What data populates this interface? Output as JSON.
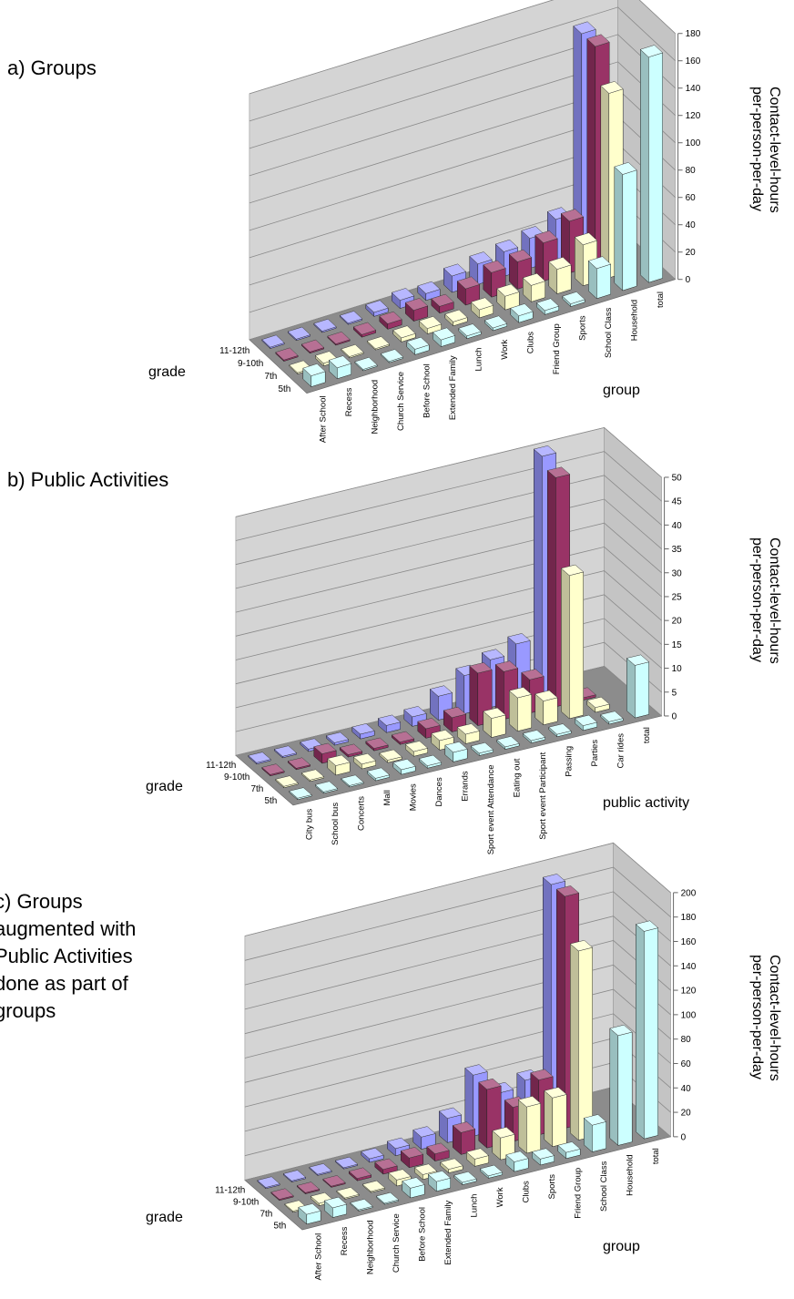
{
  "chart_data": [
    {
      "type": "bar3d",
      "title": "a) Groups",
      "ylabel": "Contact-level-hours per-person-per-day",
      "xlabel": "group",
      "depth_label": "grade",
      "categories": [
        "After School",
        "Recess",
        "Neighborhood",
        "Church Service",
        "Before School",
        "Extended Family",
        "Lunch",
        "Work",
        "Clubs",
        "Friend Group",
        "Sports",
        "School Class",
        "Household",
        "total"
      ],
      "series": [
        {
          "name": "11-12th",
          "color": "#9999ff",
          "values": [
            1,
            1,
            1,
            1,
            3,
            6,
            5,
            12,
            15,
            18,
            22,
            30,
            160,
            null
          ]
        },
        {
          "name": "9-10th",
          "color": "#993366",
          "values": [
            1,
            1,
            1,
            2,
            4,
            8,
            5,
            12,
            18,
            20,
            28,
            38,
            160,
            null
          ]
        },
        {
          "name": "7th",
          "color": "#ffffcc",
          "values": [
            1,
            2,
            1,
            1,
            3,
            4,
            3,
            6,
            10,
            12,
            18,
            30,
            135,
            null
          ]
        },
        {
          "name": "5th",
          "color": "#ccffff",
          "values": [
            8,
            8,
            1,
            1,
            4,
            5,
            2,
            2,
            5,
            3,
            2,
            22,
            85,
            165
          ]
        }
      ],
      "ylim": [
        0,
        180
      ],
      "yticks": [
        0,
        20,
        40,
        60,
        80,
        100,
        120,
        140,
        160,
        180
      ],
      "grid": true
    },
    {
      "type": "bar3d",
      "title": "b) Public Activities",
      "ylabel": "Contact-level-hours per-person-per-day",
      "xlabel": "public activity",
      "depth_label": "grade",
      "categories": [
        "City bus",
        "School bus",
        "Concerts",
        "Mall",
        "Movies",
        "Dances",
        "Errands",
        "Sport event Attendance",
        "Eating out",
        "Sport event Participant",
        "Passing",
        "Parties",
        "Car rides",
        "total"
      ],
      "series": [
        {
          "name": "11-12th",
          "color": "#9999ff",
          "values": [
            0.3,
            0.3,
            0.5,
            0.5,
            1,
            1.5,
            2,
            5,
            8,
            10,
            12,
            50,
            0.5,
            null
          ]
        },
        {
          "name": "9-10th",
          "color": "#993366",
          "values": [
            0.3,
            0.3,
            2,
            0.5,
            0.5,
            0.5,
            2,
            3,
            11,
            10,
            7,
            48,
            0.5,
            null
          ]
        },
        {
          "name": "7th",
          "color": "#ffffcc",
          "values": [
            0.3,
            0.3,
            2,
            1,
            0.5,
            1,
            2,
            2,
            4,
            7,
            5,
            30,
            1,
            null
          ]
        },
        {
          "name": "5th",
          "color": "#ccffff",
          "values": [
            0.3,
            0.3,
            0.3,
            0.5,
            1,
            0.5,
            2,
            0.5,
            0.5,
            0.5,
            0.5,
            1,
            0.5,
            11
          ]
        }
      ],
      "ylim": [
        0,
        50
      ],
      "yticks": [
        0,
        5,
        10,
        15,
        20,
        25,
        30,
        35,
        40,
        45,
        50
      ],
      "grid": true
    },
    {
      "type": "bar3d",
      "title": "c) Groups augmented with Public Activities done as part of groups",
      "ylabel": "Contact-level-hours per-person-per-day",
      "xlabel": "group",
      "depth_label": "grade",
      "categories": [
        "After School",
        "Recess",
        "Neighborhood",
        "Church Service",
        "Before School",
        "Extended Family",
        "Lunch",
        "Work",
        "Clubs",
        "Sports",
        "Friend Group",
        "School Class",
        "Household",
        "total"
      ],
      "series": [
        {
          "name": "11-12th",
          "color": "#9999ff",
          "values": [
            1,
            1,
            1,
            1,
            3,
            6,
            10,
            20,
            50,
            30,
            35,
            190,
            null,
            null
          ]
        },
        {
          "name": "9-10th",
          "color": "#993366",
          "values": [
            1,
            1,
            1,
            2,
            4,
            8,
            6,
            18,
            48,
            28,
            45,
            190,
            null,
            null
          ]
        },
        {
          "name": "7th",
          "color": "#ffffcc",
          "values": [
            1,
            2,
            1,
            1,
            5,
            4,
            3,
            6,
            18,
            38,
            40,
            155,
            null,
            null
          ]
        },
        {
          "name": "5th",
          "color": "#ccffff",
          "values": [
            8,
            8,
            1,
            1,
            8,
            8,
            2,
            2,
            8,
            5,
            5,
            22,
            90,
            170
          ]
        }
      ],
      "ylim": [
        0,
        200
      ],
      "yticks": [
        0,
        20,
        40,
        60,
        80,
        100,
        120,
        140,
        160,
        180,
        200
      ],
      "grid": true
    }
  ]
}
